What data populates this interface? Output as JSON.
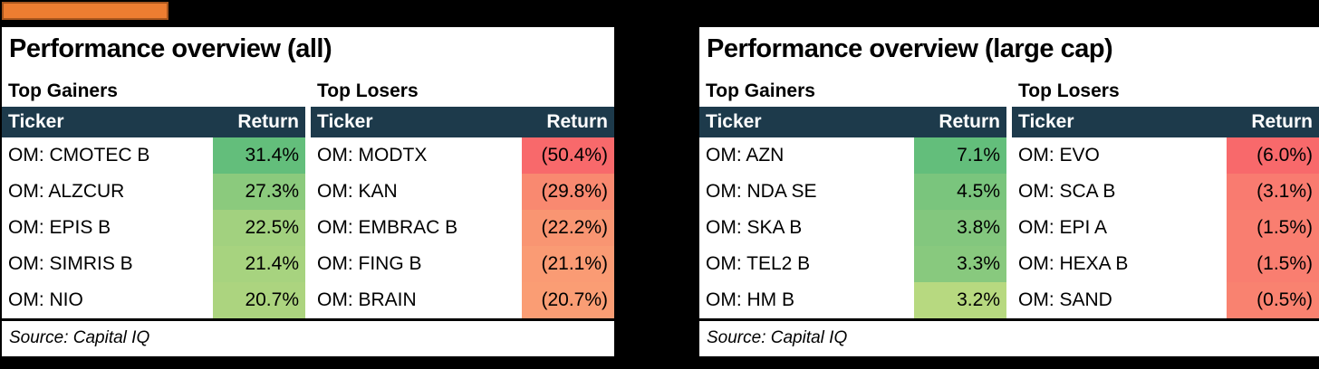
{
  "accent_bar": {
    "color": "#ED7D31",
    "border_color": "#A8561E"
  },
  "colors": {
    "page_bg": "#000000",
    "panel_bg": "#ffffff",
    "table_header_bg": "#1d3a4b",
    "table_header_text": "#ffffff"
  },
  "panels": [
    {
      "title": "Performance overview (all)",
      "source": "Source: Capital IQ",
      "sections": [
        {
          "label": "Top Gainers",
          "columns": [
            "Ticker",
            "Return"
          ],
          "rows": [
            {
              "ticker": "OM: CMOTEC B",
              "value": "31.4%",
              "color": "#63be7b"
            },
            {
              "ticker": "OM: ALZCUR",
              "value": "27.3%",
              "color": "#8bca7d"
            },
            {
              "ticker": "OM: EPIS B",
              "value": "22.5%",
              "color": "#a2d17f"
            },
            {
              "ticker": "OM: SIMRIS B",
              "value": "21.4%",
              "color": "#a7d37f"
            },
            {
              "ticker": "OM: NIO",
              "value": "20.7%",
              "color": "#acd47f"
            }
          ]
        },
        {
          "label": "Top Losers",
          "columns": [
            "Ticker",
            "Return"
          ],
          "rows": [
            {
              "ticker": "OM: MODTX",
              "value": "(50.4%)",
              "color": "#f8696b"
            },
            {
              "ticker": "OM: KAN",
              "value": "(29.8%)",
              "color": "#f98970"
            },
            {
              "ticker": "OM: EMBRAC B",
              "value": "(22.2%)",
              "color": "#f99572"
            },
            {
              "ticker": "OM: FING B",
              "value": "(21.1%)",
              "color": "#fa9b74"
            },
            {
              "ticker": "OM: BRAIN",
              "value": "(20.7%)",
              "color": "#fa9d74"
            }
          ]
        }
      ]
    },
    {
      "title": "Performance overview (large cap)",
      "source": "Source: Capital IQ",
      "sections": [
        {
          "label": "Top Gainers",
          "columns": [
            "Ticker",
            "Return"
          ],
          "rows": [
            {
              "ticker": "OM: AZN",
              "value": "7.1%",
              "color": "#63be7b"
            },
            {
              "ticker": "OM: NDA SE",
              "value": "4.5%",
              "color": "#7ac57d"
            },
            {
              "ticker": "OM: SKA B",
              "value": "3.8%",
              "color": "#83c77e"
            },
            {
              "ticker": "OM: TEL2 B",
              "value": "3.3%",
              "color": "#88c97e"
            },
            {
              "ticker": "OM: HM B",
              "value": "3.2%",
              "color": "#b7d980"
            }
          ]
        },
        {
          "label": "Top Losers",
          "columns": [
            "Ticker",
            "Return"
          ],
          "rows": [
            {
              "ticker": "OM: EVO",
              "value": "(6.0%)",
              "color": "#f8696b"
            },
            {
              "ticker": "OM: SCA B",
              "value": "(3.1%)",
              "color": "#f97b70"
            },
            {
              "ticker": "OM: EPI A",
              "value": "(1.5%)",
              "color": "#f97e70"
            },
            {
              "ticker": "OM: HEXA B",
              "value": "(1.5%)",
              "color": "#f97e70"
            },
            {
              "ticker": "OM: SAND",
              "value": "(0.5%)",
              "color": "#f98270"
            }
          ]
        }
      ]
    }
  ]
}
